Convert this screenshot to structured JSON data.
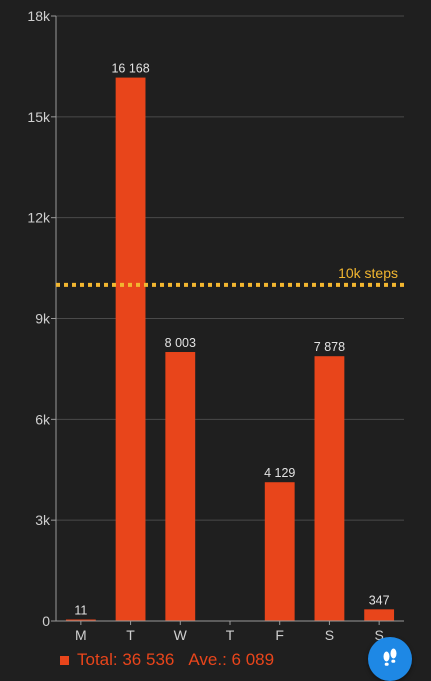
{
  "chart_data": {
    "type": "bar",
    "categories": [
      "M",
      "T",
      "W",
      "T",
      "F",
      "S",
      "S"
    ],
    "values": [
      11,
      16168,
      8003,
      0,
      4129,
      7878,
      347
    ],
    "value_labels": [
      "11",
      "16 168",
      "8 003",
      "",
      "4 129",
      "7 878",
      "347"
    ],
    "y_ticks": [
      0,
      3000,
      6000,
      9000,
      12000,
      15000,
      18000
    ],
    "y_tick_labels": [
      "0",
      "3k",
      "6k",
      "9k",
      "12k",
      "15k",
      "18k"
    ],
    "ylim": [
      0,
      18000
    ],
    "goal": {
      "value": 10000,
      "label": "10k steps"
    },
    "grid": true,
    "colors": {
      "bar": "#e8451b",
      "goal": "#f2b630",
      "grid": "#4a4a4a",
      "background": "#1f1f1f"
    }
  },
  "footer": {
    "total": "Total: 36 536",
    "average": "Ave.: 6 089"
  },
  "fab": {
    "icon": "footsteps-icon",
    "color": "#1e88e5"
  }
}
